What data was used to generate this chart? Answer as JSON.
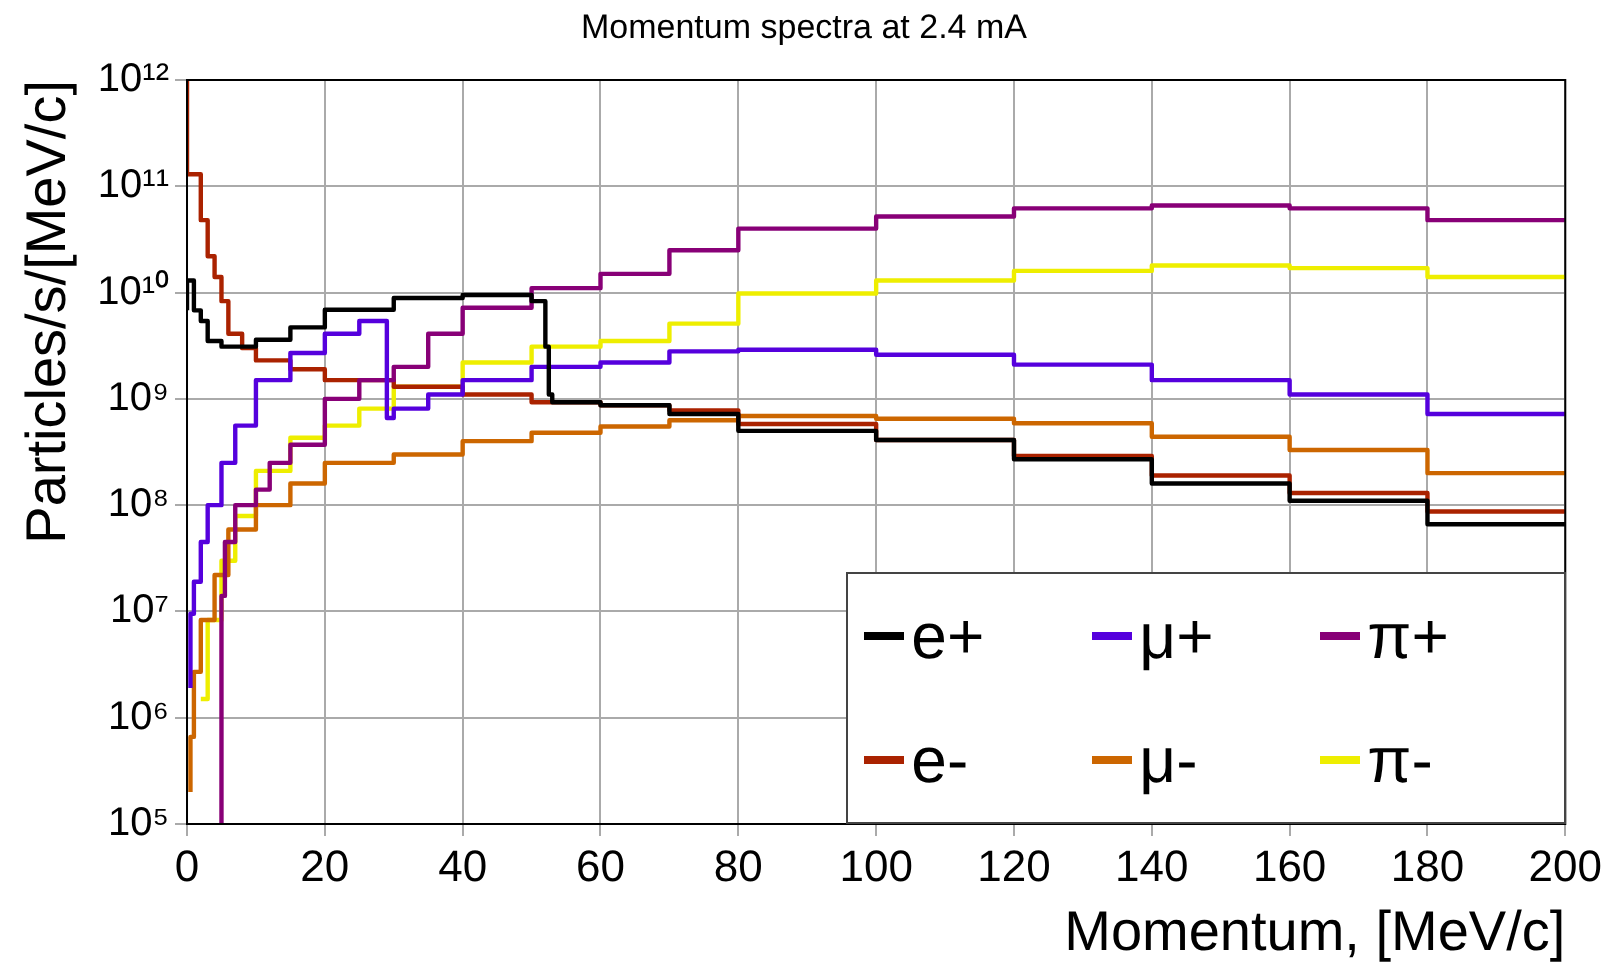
{
  "chart_data": {
    "type": "step",
    "title": "Momentum spectra at 2.4 mA",
    "xlabel": "Momentum, [MeV/c]",
    "ylabel": "Particles/s/[MeV/c]",
    "xlim": [
      0,
      200
    ],
    "xticks": [
      0,
      20,
      40,
      60,
      80,
      100,
      120,
      140,
      160,
      180,
      200
    ],
    "ylim": [
      100000,
      1000000000000
    ],
    "yticks": [
      {
        "value": 100000,
        "label": "10⁵"
      },
      {
        "value": 1000000,
        "label": "10⁶"
      },
      {
        "value": 10000000,
        "label": "10⁷"
      },
      {
        "value": 100000000,
        "label": "10⁸"
      },
      {
        "value": 1000000000,
        "label": "10⁹"
      },
      {
        "value": 10000000000,
        "label": "10¹⁰"
      },
      {
        "value": 100000000000,
        "label": "10¹¹"
      },
      {
        "value": 1000000000000,
        "label": "10¹²"
      }
    ],
    "log": "y",
    "grid": true,
    "legend": "bottom right",
    "line_style": "solid",
    "marker": "none",
    "series": [
      {
        "name": "e+",
        "color": "#000000",
        "x": [
          0,
          1,
          2,
          3,
          5,
          7,
          10,
          15,
          20,
          30,
          40,
          50,
          52,
          52.5,
          53,
          60,
          70,
          80,
          100,
          120,
          140,
          160,
          180,
          200
        ],
        "values": [
          6800000000.0,
          13000000000.0,
          6800000000.0,
          5400000000.0,
          3500000000.0,
          3100000000.0,
          3100000000.0,
          3600000000.0,
          4700000000.0,
          6900000000.0,
          8900000000.0,
          9500000000.0,
          8300000000.0,
          3100000000.0,
          1100000000.0,
          930000000.0,
          870000000.0,
          720000000.0,
          500000000.0,
          410000000.0,
          270000000.0,
          160000000.0,
          110000000.0,
          66000000.0
        ]
      },
      {
        "name": "μ+",
        "color": "#5500dd",
        "x": [
          0.5,
          1,
          2,
          3,
          5,
          7,
          10,
          15,
          20,
          25,
          29,
          30,
          35,
          40,
          50,
          60,
          70,
          80,
          100,
          120,
          140,
          160,
          180,
          200
        ],
        "values": [
          1900000.0,
          9500000.0,
          19000000.0,
          45000000.0,
          100000000.0,
          250000000.0,
          560000000.0,
          1500000000.0,
          2700000000.0,
          4100000000.0,
          5400000000.0,
          660000000.0,
          810000000.0,
          1100000000.0,
          1500000000.0,
          2000000000.0,
          2200000000.0,
          2800000000.0,
          2900000000.0,
          2600000000.0,
          2100000000.0,
          1500000000.0,
          1100000000.0,
          720000000.0
        ]
      },
      {
        "name": "π+",
        "color": "#880077",
        "x": [
          5,
          5.5,
          7,
          10,
          12,
          15,
          20,
          25,
          30,
          35,
          40,
          50,
          60,
          70,
          80,
          100,
          120,
          140,
          160,
          180,
          200
        ],
        "values": [
          100000,
          14000000.0,
          45000000.0,
          100000000.0,
          140000000.0,
          250000000.0,
          370000000.0,
          1000000000.0,
          1500000000.0,
          2000000000.0,
          4100000000.0,
          7200000000.0,
          11000000000.0,
          15000000000.0,
          25000000000.0,
          40000000000.0,
          52000000000.0,
          62000000000.0,
          66000000000.0,
          62000000000.0,
          48000000000.0
        ]
      },
      {
        "name": "e-",
        "color": "#aa2200",
        "x": [
          0,
          2,
          3,
          4,
          5,
          6,
          8,
          10,
          15,
          20,
          30,
          40,
          50,
          60,
          70,
          80,
          100,
          120,
          140,
          160,
          180,
          200
        ],
        "values": [
          1000000000000.0,
          130000000000.0,
          48000000000.0,
          22000000000.0,
          14000000000.0,
          8300000000.0,
          4100000000.0,
          3000000000.0,
          2300000000.0,
          1900000000.0,
          1500000000.0,
          1300000000.0,
          1100000000.0,
          930000000.0,
          870000000.0,
          780000000.0,
          580000000.0,
          410000000.0,
          290000000.0,
          190000000.0,
          130000000.0,
          87000000.0
        ]
      },
      {
        "name": "μ-",
        "color": "#cc6600",
        "x": [
          0.5,
          1,
          2,
          4,
          6,
          10,
          15,
          20,
          30,
          40,
          50,
          60,
          70,
          80,
          100,
          120,
          140,
          160,
          180,
          200
        ],
        "values": [
          200000,
          660000.0,
          2700000.0,
          8300000.0,
          22000000.0,
          59000000.0,
          100000000.0,
          160000000.0,
          250000000.0,
          300000000.0,
          400000000.0,
          480000000.0,
          550000000.0,
          630000000.0,
          690000000.0,
          650000000.0,
          590000000.0,
          440000000.0,
          330000000.0,
          200000000.0
        ]
      },
      {
        "name": "π-",
        "color": "#eeee00",
        "x": [
          2,
          3,
          5,
          7,
          10,
          15,
          20,
          25,
          30,
          40,
          50,
          60,
          70,
          80,
          100,
          120,
          140,
          160,
          180,
          200
        ],
        "values": [
          1500000.0,
          1500000.0,
          8300000.0,
          30000000.0,
          79000000.0,
          210000000.0,
          430000000.0,
          560000000.0,
          810000000.0,
          1300000000.0,
          2200000000.0,
          3100000000.0,
          3500000000.0,
          5100000000.0,
          9800000000.0,
          13000000000.0,
          16000000000.0,
          18000000000.0,
          17000000000.0,
          14000000000.0
        ]
      }
    ]
  }
}
